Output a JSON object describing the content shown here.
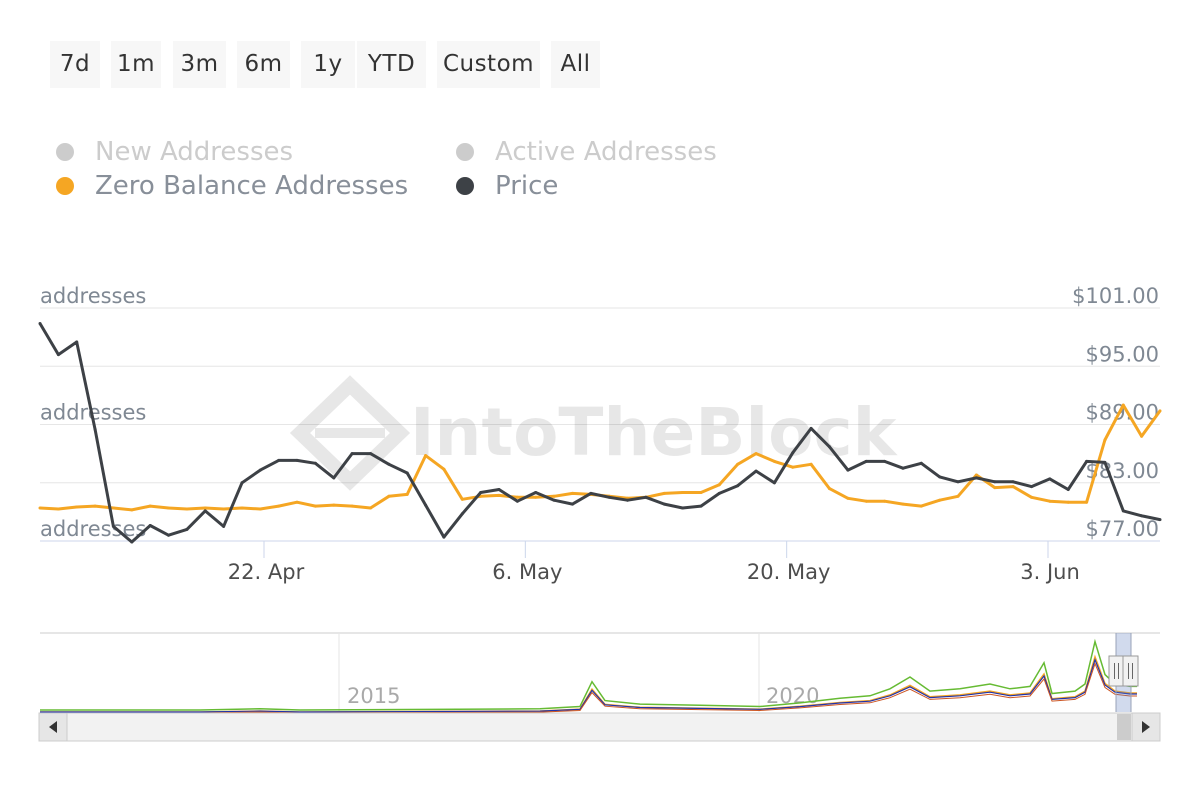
{
  "range_selector": {
    "buttons": [
      "7d",
      "1m",
      "3m",
      "6m",
      "1y",
      "YTD",
      "Custom",
      "All"
    ]
  },
  "legend": [
    {
      "name": "New Addresses",
      "color": "#cccccc",
      "visible": false
    },
    {
      "name": "Active Addresses",
      "color": "#cccccc",
      "visible": false
    },
    {
      "name": "Zero Balance Addresses",
      "color": "#f5a623",
      "visible": true
    },
    {
      "name": "Price",
      "color": "#3d4146",
      "visible": true
    }
  ],
  "watermark": "IntoTheBlock",
  "chart_data": {
    "type": "line",
    "x_start": "2023-04-10",
    "x_end": "2023-06-09",
    "x_ticks": [
      "22. Apr",
      "6. May",
      "20. May",
      "3. Jun"
    ],
    "left_axis_labels": [
      "addresses",
      "addresses",
      "addresses"
    ],
    "right_axis": {
      "ticks": [
        "$101.00",
        "$95.00",
        "$89.00",
        "$83.00",
        "$77.00"
      ],
      "range": [
        77,
        101
      ]
    },
    "series": [
      {
        "name": "Zero Balance Addresses",
        "color": "#f5a623",
        "axis": "left",
        "values": [
          80.4,
          80.3,
          80.5,
          80.6,
          80.4,
          80.2,
          80.6,
          80.4,
          80.3,
          80.4,
          80.3,
          80.4,
          80.3,
          80.6,
          81.0,
          80.6,
          80.7,
          80.6,
          80.4,
          81.6,
          81.8,
          85.8,
          84.4,
          81.3,
          81.6,
          81.7,
          81.5,
          81.5,
          81.6,
          81.9,
          81.8,
          81.6,
          81.4,
          81.5,
          81.9,
          82.0,
          82.0,
          82.8,
          84.9,
          86.0,
          85.2,
          84.6,
          84.9,
          82.4,
          81.4,
          81.1,
          81.1,
          80.8,
          80.6,
          81.2,
          81.6,
          83.8,
          82.5,
          82.6,
          81.5,
          81.1,
          81.0,
          81.0,
          87.4,
          91.0,
          87.8,
          90.4
        ]
      },
      {
        "name": "Price",
        "color": "#3d4146",
        "axis": "right",
        "values": [
          99.4,
          96.2,
          97.5,
          88.5,
          78.5,
          76.9,
          78.6,
          77.6,
          78.2,
          80.1,
          78.5,
          83.0,
          84.3,
          85.3,
          85.3,
          85.0,
          83.5,
          86.0,
          86.0,
          84.9,
          84.0,
          80.7,
          77.4,
          79.8,
          82.0,
          82.3,
          81.1,
          82.0,
          81.2,
          80.8,
          81.9,
          81.5,
          81.2,
          81.5,
          80.8,
          80.4,
          80.6,
          81.9,
          82.7,
          84.2,
          83.0,
          86.1,
          88.6,
          86.7,
          84.3,
          85.2,
          85.2,
          84.5,
          85.0,
          83.6,
          83.1,
          83.5,
          83.1,
          83.1,
          82.6,
          83.4,
          82.3,
          85.2,
          85.1,
          80.1,
          79.6,
          79.2
        ]
      }
    ],
    "navigator": {
      "labels": [
        "2015",
        "2020"
      ]
    }
  }
}
